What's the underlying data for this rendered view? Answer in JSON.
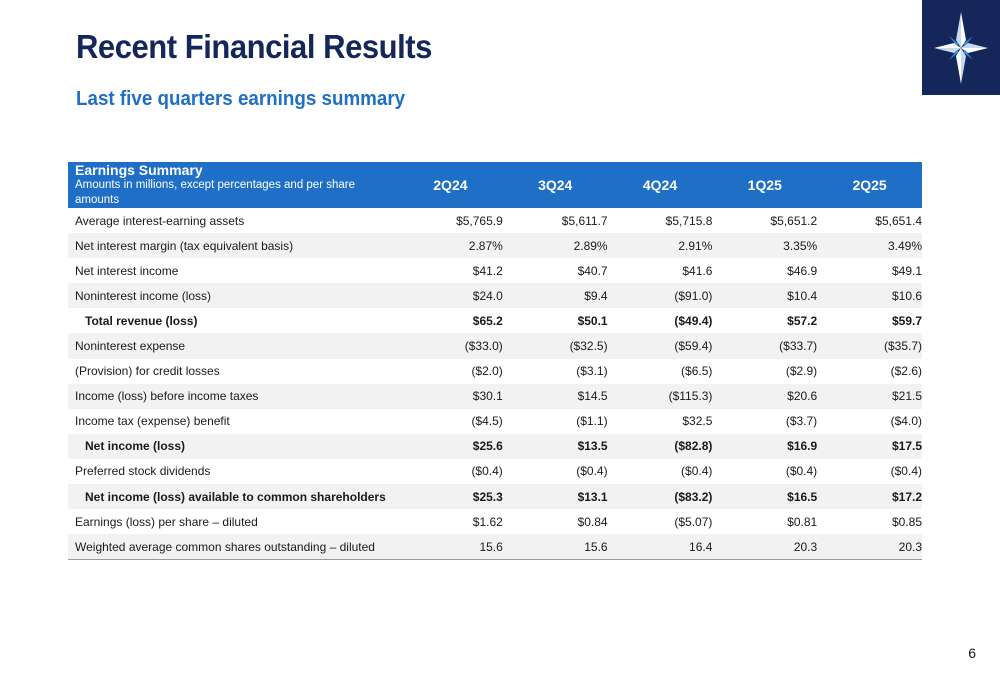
{
  "slide": {
    "title": "Recent Financial Results",
    "subtitle": "Last five quarters earnings summary",
    "page_number": "6",
    "logo_icon": "compass-star-icon",
    "colors": {
      "title": "#14265a",
      "subtitle": "#1f6fc6",
      "header_bg": "#1f6fc6",
      "logo_bg": "#14265a"
    }
  },
  "table": {
    "header": {
      "title": "Earnings Summary",
      "subtitle": "Amounts in millions, except percentages and per share amounts",
      "columns": [
        "2Q24",
        "3Q24",
        "4Q24",
        "1Q25",
        "2Q25"
      ]
    },
    "rows": [
      {
        "label": "Average interest-earning assets",
        "bold": false,
        "values": [
          "$5,765.9",
          "$5,611.7",
          "$5,715.8",
          "$5,651.2",
          "$5,651.4"
        ]
      },
      {
        "label": "Net interest margin (tax equivalent basis)",
        "bold": false,
        "values": [
          "2.87%",
          "2.89%",
          "2.91%",
          "3.35%",
          "3.49%"
        ]
      },
      {
        "label": "Net interest income",
        "bold": false,
        "values": [
          "$41.2",
          "$40.7",
          "$41.6",
          "$46.9",
          "$49.1"
        ]
      },
      {
        "label": "Noninterest income (loss)",
        "bold": false,
        "values": [
          "$24.0",
          "$9.4",
          "($91.0)",
          "$10.4",
          "$10.6"
        ]
      },
      {
        "label": "Total revenue (loss)",
        "bold": true,
        "values": [
          "$65.2",
          "$50.1",
          "($49.4)",
          "$57.2",
          "$59.7"
        ]
      },
      {
        "label": "Noninterest expense",
        "bold": false,
        "values": [
          "($33.0)",
          "($32.5)",
          "($59.4)",
          "($33.7)",
          "($35.7)"
        ]
      },
      {
        "label": "(Provision) for credit losses",
        "bold": false,
        "values": [
          "($2.0)",
          "($3.1)",
          "($6.5)",
          "($2.9)",
          "($2.6)"
        ]
      },
      {
        "label": "Income (loss) before income taxes",
        "bold": false,
        "values": [
          "$30.1",
          "$14.5",
          "($115.3)",
          "$20.6",
          "$21.5"
        ]
      },
      {
        "label": "Income tax (expense) benefit",
        "bold": false,
        "values": [
          "($4.5)",
          "($1.1)",
          "$32.5",
          "($3.7)",
          "($4.0)"
        ]
      },
      {
        "label": "Net income (loss)",
        "bold": true,
        "values": [
          "$25.6",
          "$13.5",
          "($82.8)",
          "$16.9",
          "$17.5"
        ]
      },
      {
        "label": "Preferred stock dividends",
        "bold": false,
        "values": [
          "($0.4)",
          "($0.4)",
          "($0.4)",
          "($0.4)",
          "($0.4)"
        ]
      },
      {
        "label": "Net income (loss) available to common shareholders",
        "bold": true,
        "values": [
          "$25.3",
          "$13.1",
          "($83.2)",
          "$16.5",
          "$17.2"
        ]
      },
      {
        "label": "Earnings (loss) per share – diluted",
        "bold": false,
        "values": [
          "$1.62",
          "$0.84",
          "($5.07)",
          "$0.81",
          "$0.85"
        ]
      },
      {
        "label": "Weighted average common shares outstanding – diluted",
        "bold": false,
        "values": [
          "15.6",
          "15.6",
          "16.4",
          "20.3",
          "20.3"
        ]
      }
    ]
  }
}
